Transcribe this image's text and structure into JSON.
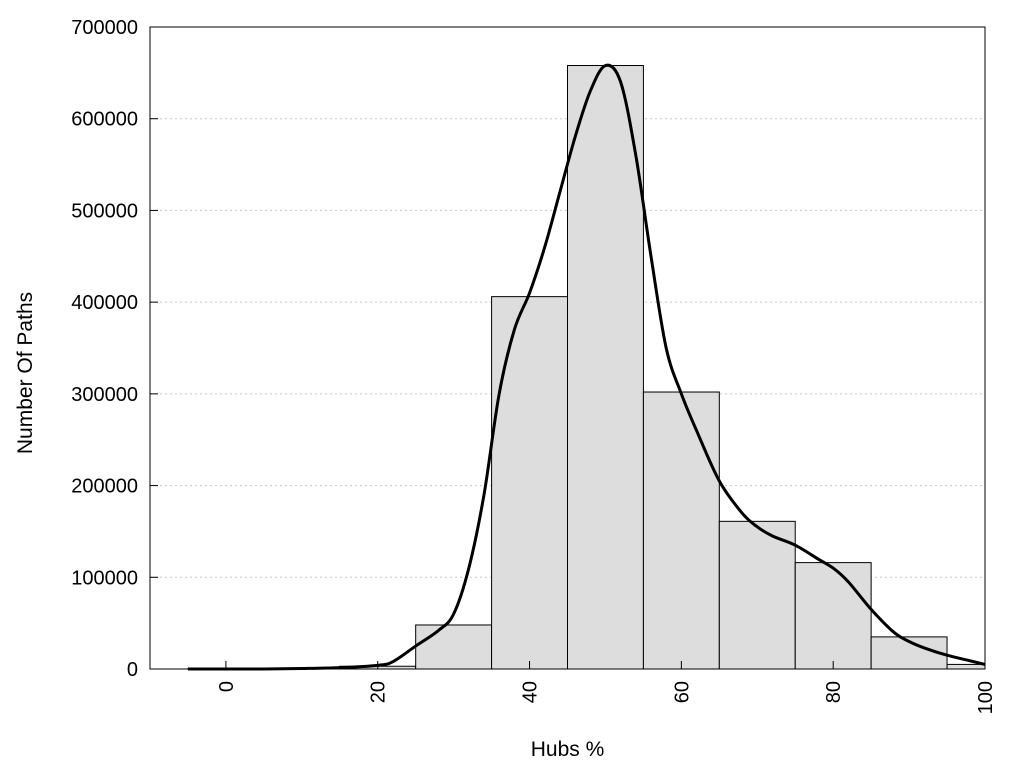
{
  "chart_data": {
    "type": "bar",
    "title": "",
    "xlabel": "Hubs %",
    "ylabel": "Number Of Paths",
    "xlim": [
      -10,
      100
    ],
    "ylim": [
      0,
      700000
    ],
    "x_ticks": [
      0,
      20,
      40,
      60,
      80,
      100
    ],
    "y_ticks": [
      0,
      100000,
      200000,
      300000,
      400000,
      500000,
      600000,
      700000
    ],
    "grid": "horizontal dotted",
    "bar_color": "#dddddd",
    "bar_edge_color": "#000000",
    "bins": [
      {
        "start": -5,
        "end": 5,
        "value": 500
      },
      {
        "start": 5,
        "end": 15,
        "value": 1000
      },
      {
        "start": 15,
        "end": 25,
        "value": 3000
      },
      {
        "start": 25,
        "end": 35,
        "value": 48000
      },
      {
        "start": 35,
        "end": 45,
        "value": 406000
      },
      {
        "start": 45,
        "end": 55,
        "value": 658000
      },
      {
        "start": 55,
        "end": 65,
        "value": 302000
      },
      {
        "start": 65,
        "end": 75,
        "value": 161000
      },
      {
        "start": 75,
        "end": 85,
        "value": 116000
      },
      {
        "start": 85,
        "end": 95,
        "value": 35000
      },
      {
        "start": 95,
        "end": 100,
        "value": 5000
      }
    ],
    "density_curve": {
      "x": [
        -5,
        0,
        5,
        10,
        15,
        20,
        22,
        25,
        28,
        30,
        32,
        34,
        36,
        38,
        40,
        42,
        44,
        46,
        48,
        50,
        52,
        54,
        56,
        58,
        60,
        62,
        65,
        68,
        70,
        72,
        75,
        78,
        80,
        82,
        85,
        88,
        90,
        92,
        95,
        98,
        100
      ],
      "y": [
        0,
        0,
        0,
        500,
        1500,
        4000,
        8000,
        25000,
        42000,
        60000,
        110000,
        190000,
        300000,
        370000,
        410000,
        460000,
        520000,
        580000,
        630000,
        658000,
        640000,
        560000,
        450000,
        350000,
        300000,
        260000,
        205000,
        170000,
        155000,
        145000,
        135000,
        120000,
        110000,
        95000,
        65000,
        40000,
        30000,
        23000,
        15000,
        9000,
        5000
      ]
    }
  }
}
